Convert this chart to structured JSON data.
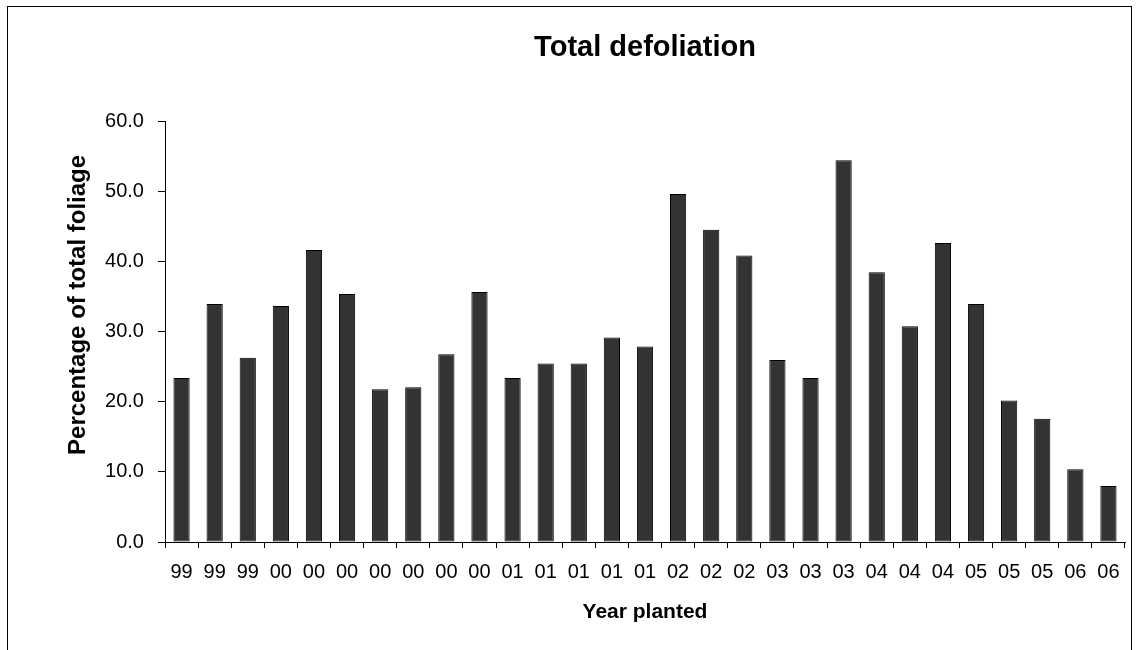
{
  "chart_data": {
    "type": "bar",
    "title": "Total defoliation",
    "xlabel": "Year planted",
    "ylabel": "Percentage of total foliage",
    "categories": [
      "99",
      "99",
      "99",
      "00",
      "00",
      "00",
      "00",
      "00",
      "00",
      "00",
      "01",
      "01",
      "01",
      "01",
      "01",
      "02",
      "02",
      "02",
      "03",
      "03",
      "03",
      "04",
      "04",
      "04",
      "05",
      "05",
      "05",
      "06",
      "06"
    ],
    "values": [
      23.4,
      34.0,
      26.3,
      33.7,
      41.7,
      35.4,
      21.8,
      22.1,
      26.8,
      35.7,
      23.4,
      25.5,
      25.5,
      29.2,
      27.9,
      49.7,
      44.6,
      40.9,
      26.0,
      23.4,
      54.5,
      38.5,
      30.8,
      42.7,
      34.0,
      20.2,
      17.6,
      10.4,
      8.0
    ],
    "color": "#333333",
    "ylim": [
      0,
      60
    ],
    "yticks": [
      {
        "value": 0,
        "label": "0.0"
      },
      {
        "value": 10,
        "label": "10.0"
      },
      {
        "value": 20,
        "label": "20.0"
      },
      {
        "value": 30,
        "label": "30.0"
      },
      {
        "value": 40,
        "label": "40.0"
      },
      {
        "value": 50,
        "label": "50.0"
      },
      {
        "value": 60,
        "label": "60.0"
      }
    ]
  }
}
